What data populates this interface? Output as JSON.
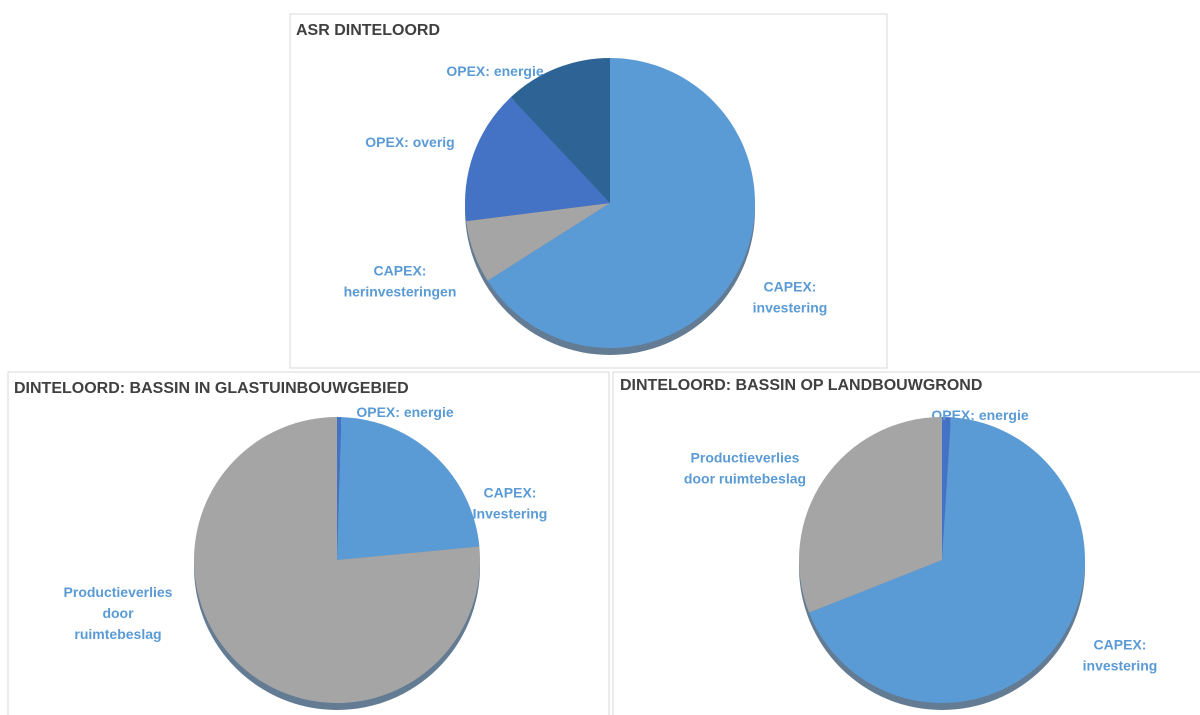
{
  "chart_data": [
    {
      "type": "pie",
      "title": "ASR DINTELOORD",
      "categories": [
        "CAPEX:\ninvestering",
        "CAPEX:\nherinvesteringen",
        "OPEX: overig",
        "OPEX: energie"
      ],
      "values": [
        66,
        7,
        15,
        12
      ],
      "colors": [
        "#5b9bd5",
        "#a5a5a5",
        "#4472c4",
        "#2e6395"
      ]
    },
    {
      "type": "pie",
      "title": "DINTELOORD: BASSIN IN GLASTUINBOUWGEBIED",
      "categories": [
        "OPEX: energie",
        "CAPEX:\nInvestering",
        "Productieverlies\ndoor\nruimtebeslag"
      ],
      "values": [
        0.5,
        23,
        76.5
      ],
      "colors": [
        "#4472c4",
        "#5b9bd5",
        "#a5a5a5"
      ]
    },
    {
      "type": "pie",
      "title": "DINTELOORD: BASSIN OP LANDBOUWGROND",
      "categories": [
        "OPEX: energie",
        "CAPEX:\ninvestering",
        "Productieverlies\ndoor ruimtebeslag"
      ],
      "values": [
        1,
        68,
        31
      ],
      "colors": [
        "#4472c4",
        "#5b9bd5",
        "#a5a5a5"
      ]
    }
  ]
}
